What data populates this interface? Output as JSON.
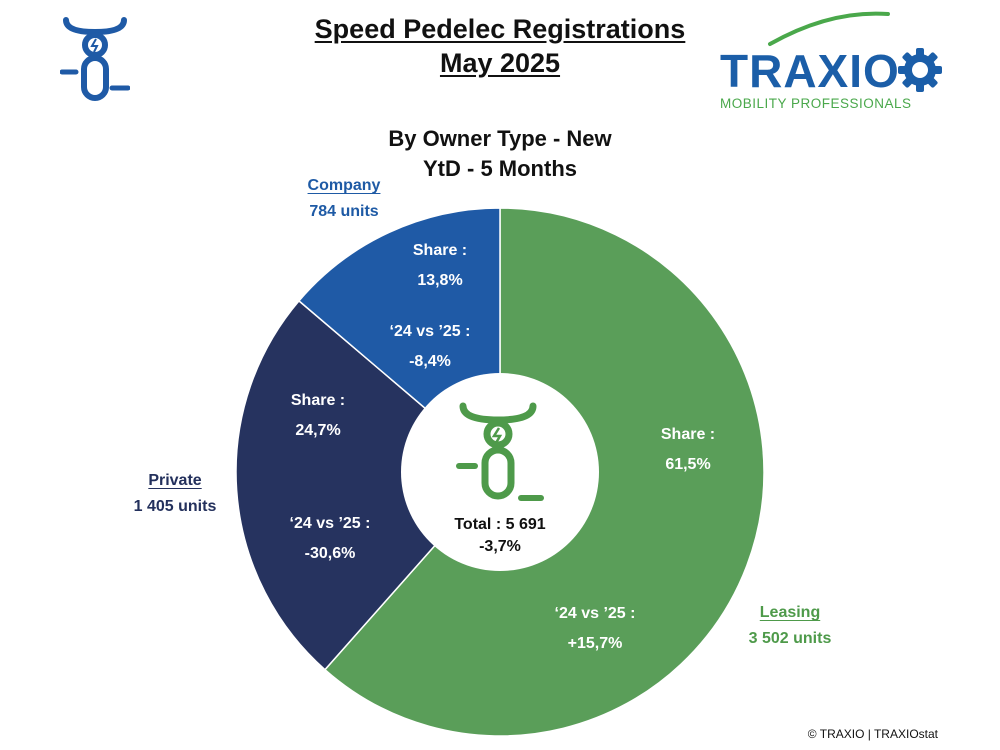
{
  "header": {
    "title_line1": "Speed Pedelec Registrations",
    "title_line2": "May 2025",
    "subtitle_line1": "By Owner Type - New",
    "subtitle_line2": "YtD - 5 Months"
  },
  "brand": {
    "name": "TRAXIO",
    "tagline": "MOBILITY PROFESSIONALS",
    "blue": "#1b5ea8",
    "green": "#4aa84b"
  },
  "icons": {
    "header_icon": "speed-pedelec-icon",
    "center_icon": "speed-pedelec-icon"
  },
  "chart_data": {
    "type": "pie",
    "title": "By Owner Type - New",
    "subtitle": "YtD - 5 Months",
    "total_label": "Total : 5 691",
    "total_change": "-3,7%",
    "slices": [
      {
        "name": "Leasing",
        "units": 3502,
        "units_label": "3 502 units",
        "share_caption": "Share :",
        "share": "61,5%",
        "change_caption": "‘24 vs ’25 :",
        "change": "+15,7%",
        "color": "#5a9e59",
        "label_color": "#4e9a4a"
      },
      {
        "name": "Private",
        "units": 1405,
        "units_label": "1 405 units",
        "share_caption": "Share :",
        "share": "24,7%",
        "change_caption": "‘24 vs ’25 :",
        "change": "-30,6%",
        "color": "#26335f",
        "label_color": "#23305c"
      },
      {
        "name": "Company",
        "units": 784,
        "units_label": "784 units",
        "share_caption": "Share :",
        "share": "13,8%",
        "change_caption": "‘24 vs ’25 :",
        "change": "-8,4%",
        "color": "#1f5aa6",
        "label_color": "#1e5aa5"
      }
    ],
    "hole_color": "#ffffff"
  },
  "footer": {
    "copyright": "© TRAXIO | TRAXIOstat"
  }
}
